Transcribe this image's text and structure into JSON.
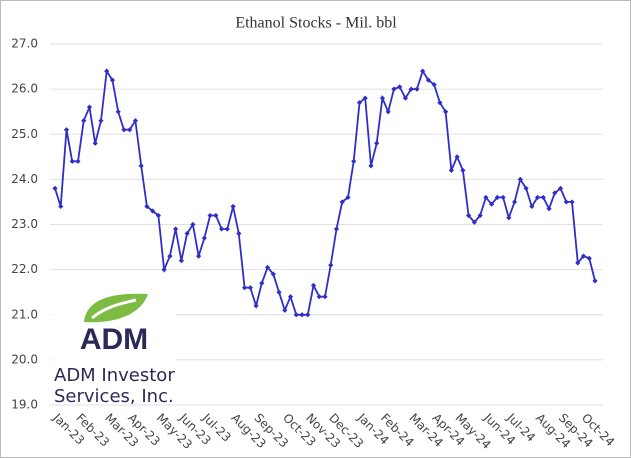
{
  "chart_data": {
    "type": "line",
    "title": "Ethanol Stocks - Mil. bbl",
    "categories": [
      "Jan-23",
      null,
      null,
      null,
      "Feb-23",
      null,
      null,
      null,
      null,
      "Mar-23",
      null,
      null,
      null,
      "Apr-23",
      null,
      null,
      null,
      null,
      "May-23",
      null,
      null,
      null,
      "Jun-23",
      null,
      null,
      null,
      "Jul-23",
      null,
      null,
      null,
      null,
      "Aug-23",
      null,
      null,
      null,
      "Sep-23",
      null,
      null,
      null,
      null,
      "Oct-23",
      null,
      null,
      null,
      "Nov-23",
      null,
      null,
      null,
      "Dec-23",
      null,
      null,
      null,
      null,
      "Jan-24",
      null,
      null,
      null,
      "Feb-24",
      null,
      null,
      null,
      null,
      "Mar-24",
      null,
      null,
      null,
      "Apr-24",
      null,
      null,
      null,
      "May-24",
      null,
      null,
      null,
      null,
      "Jun-24",
      null,
      null,
      null,
      "Jul-24",
      null,
      null,
      null,
      null,
      "Aug-24",
      null,
      null,
      null,
      "Sep-24",
      null,
      null,
      null,
      "Oct-24",
      null,
      null
    ],
    "values": [
      23.8,
      23.4,
      25.1,
      24.4,
      24.4,
      25.3,
      25.6,
      24.8,
      25.3,
      26.4,
      26.2,
      25.5,
      25.1,
      25.1,
      25.3,
      24.3,
      23.4,
      23.3,
      23.2,
      22.0,
      22.3,
      22.9,
      22.2,
      22.8,
      23.0,
      22.3,
      22.7,
      23.2,
      23.2,
      22.9,
      22.9,
      23.4,
      22.8,
      21.6,
      21.6,
      21.2,
      21.7,
      22.05,
      21.9,
      21.5,
      21.1,
      21.4,
      21.0,
      21.0,
      21.0,
      21.65,
      21.4,
      21.4,
      22.1,
      22.9,
      23.5,
      23.6,
      24.4,
      25.7,
      25.8,
      24.3,
      24.8,
      25.8,
      25.5,
      26.0,
      26.05,
      25.8,
      26.0,
      26.0,
      26.4,
      26.2,
      26.1,
      25.7,
      25.5,
      24.2,
      24.5,
      24.2,
      23.2,
      23.05,
      23.2,
      23.6,
      23.45,
      23.6,
      23.6,
      23.15,
      23.5,
      24.0,
      23.8,
      23.4,
      23.6,
      23.6,
      23.35,
      23.7,
      23.8,
      23.5,
      23.5,
      22.15,
      22.3,
      22.25,
      21.75
    ],
    "color": "#2f2fc8",
    "ylim": [
      19,
      27
    ],
    "yticks": [
      {
        "value": 19,
        "label": "19.0"
      },
      {
        "value": 20,
        "label": "20.0"
      },
      {
        "value": 21,
        "label": "21.0"
      },
      {
        "value": 22,
        "label": "22.0"
      },
      {
        "value": 23,
        "label": "23.0"
      },
      {
        "value": 24,
        "label": "24.0"
      },
      {
        "value": 25,
        "label": "25.0"
      },
      {
        "value": 26,
        "label": "26.0"
      },
      {
        "value": 27,
        "label": "27.0"
      }
    ],
    "grid": true
  },
  "branding": {
    "logo": "ADM",
    "company_line1": "ADM Investor",
    "company_line2": "Services, Inc."
  }
}
